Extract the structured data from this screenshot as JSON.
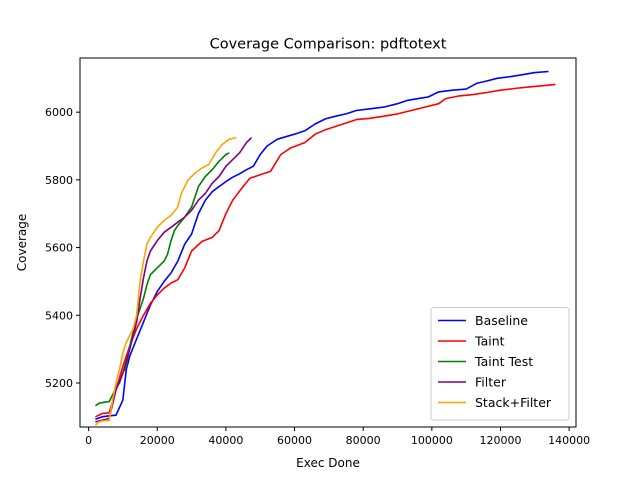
{
  "chart_data": {
    "type": "line",
    "title": "Coverage Comparison: pdftotext",
    "xlabel": "Exec Done",
    "ylabel": "Coverage",
    "xlim": [
      -2500,
      142000
    ],
    "ylim": [
      5070,
      6160
    ],
    "xticks": [
      0,
      20000,
      40000,
      60000,
      80000,
      100000,
      120000,
      140000
    ],
    "xtick_labels": [
      "0",
      "20000",
      "40000",
      "60000",
      "80000",
      "100000",
      "120000",
      "140000"
    ],
    "yticks": [
      5200,
      5400,
      5600,
      5800,
      6000
    ],
    "ytick_labels": [
      "5200",
      "5400",
      "5600",
      "5800",
      "6000"
    ],
    "grid": false,
    "legend_position": "lower-right",
    "series": [
      {
        "name": "Baseline",
        "color": "#0000ff",
        "points": [
          [
            2000,
            5093
          ],
          [
            4000,
            5100
          ],
          [
            6000,
            5103
          ],
          [
            8000,
            5105
          ],
          [
            10000,
            5150
          ],
          [
            11000,
            5240
          ],
          [
            12000,
            5280
          ],
          [
            14000,
            5330
          ],
          [
            16000,
            5380
          ],
          [
            18000,
            5430
          ],
          [
            20000,
            5470
          ],
          [
            22000,
            5500
          ],
          [
            24000,
            5525
          ],
          [
            26000,
            5560
          ],
          [
            28000,
            5610
          ],
          [
            30000,
            5640
          ],
          [
            32000,
            5700
          ],
          [
            34000,
            5740
          ],
          [
            36000,
            5765
          ],
          [
            38000,
            5780
          ],
          [
            40000,
            5795
          ],
          [
            42000,
            5808
          ],
          [
            44000,
            5818
          ],
          [
            46000,
            5830
          ],
          [
            48000,
            5840
          ],
          [
            50000,
            5875
          ],
          [
            52000,
            5900
          ],
          [
            55000,
            5920
          ],
          [
            60000,
            5935
          ],
          [
            63000,
            5945
          ],
          [
            66000,
            5965
          ],
          [
            69000,
            5980
          ],
          [
            72000,
            5988
          ],
          [
            75000,
            5995
          ],
          [
            78000,
            6005
          ],
          [
            82000,
            6010
          ],
          [
            86000,
            6015
          ],
          [
            90000,
            6025
          ],
          [
            93000,
            6035
          ],
          [
            96000,
            6040
          ],
          [
            99000,
            6045
          ],
          [
            102000,
            6060
          ],
          [
            106000,
            6065
          ],
          [
            110000,
            6068
          ],
          [
            113000,
            6085
          ],
          [
            116000,
            6092
          ],
          [
            119000,
            6100
          ],
          [
            123000,
            6105
          ],
          [
            126000,
            6110
          ],
          [
            130000,
            6117
          ],
          [
            134000,
            6120
          ]
        ]
      },
      {
        "name": "Taint",
        "color": "#ff0000",
        "points": [
          [
            2000,
            5100
          ],
          [
            4000,
            5110
          ],
          [
            6000,
            5112
          ],
          [
            8000,
            5180
          ],
          [
            10000,
            5250
          ],
          [
            12000,
            5310
          ],
          [
            14000,
            5360
          ],
          [
            16000,
            5400
          ],
          [
            18000,
            5435
          ],
          [
            20000,
            5460
          ],
          [
            22000,
            5480
          ],
          [
            24000,
            5495
          ],
          [
            26000,
            5505
          ],
          [
            28000,
            5540
          ],
          [
            30000,
            5590
          ],
          [
            33000,
            5618
          ],
          [
            36000,
            5630
          ],
          [
            38000,
            5650
          ],
          [
            40000,
            5700
          ],
          [
            42000,
            5740
          ],
          [
            45000,
            5780
          ],
          [
            47000,
            5805
          ],
          [
            50000,
            5815
          ],
          [
            53000,
            5825
          ],
          [
            56000,
            5875
          ],
          [
            59000,
            5895
          ],
          [
            63000,
            5910
          ],
          [
            66000,
            5935
          ],
          [
            69000,
            5948
          ],
          [
            72000,
            5958
          ],
          [
            75000,
            5968
          ],
          [
            78000,
            5978
          ],
          [
            82000,
            5982
          ],
          [
            86000,
            5988
          ],
          [
            90000,
            5995
          ],
          [
            94000,
            6005
          ],
          [
            98000,
            6015
          ],
          [
            102000,
            6025
          ],
          [
            104000,
            6040
          ],
          [
            108000,
            6048
          ],
          [
            112000,
            6052
          ],
          [
            116000,
            6058
          ],
          [
            120000,
            6065
          ],
          [
            124000,
            6070
          ],
          [
            128000,
            6074
          ],
          [
            132000,
            6078
          ],
          [
            136000,
            6082
          ]
        ]
      },
      {
        "name": "Taint Test",
        "color": "#008000",
        "points": [
          [
            2000,
            5133
          ],
          [
            3000,
            5140
          ],
          [
            4000,
            5142
          ],
          [
            6000,
            5145
          ],
          [
            7000,
            5165
          ],
          [
            8000,
            5185
          ],
          [
            9000,
            5200
          ],
          [
            10000,
            5230
          ],
          [
            11000,
            5250
          ],
          [
            12000,
            5310
          ],
          [
            13000,
            5350
          ],
          [
            14000,
            5390
          ],
          [
            15000,
            5420
          ],
          [
            16000,
            5450
          ],
          [
            17000,
            5490
          ],
          [
            18000,
            5520
          ],
          [
            20000,
            5540
          ],
          [
            22000,
            5560
          ],
          [
            23000,
            5580
          ],
          [
            24000,
            5620
          ],
          [
            25000,
            5650
          ],
          [
            26000,
            5665
          ],
          [
            28000,
            5690
          ],
          [
            30000,
            5720
          ],
          [
            32000,
            5780
          ],
          [
            34000,
            5810
          ],
          [
            36000,
            5830
          ],
          [
            38000,
            5855
          ],
          [
            40000,
            5875
          ],
          [
            41000,
            5880
          ]
        ]
      },
      {
        "name": "Filter",
        "color": "#800080",
        "points": [
          [
            2000,
            5085
          ],
          [
            4000,
            5090
          ],
          [
            6000,
            5095
          ],
          [
            8000,
            5180
          ],
          [
            10000,
            5230
          ],
          [
            12000,
            5300
          ],
          [
            13000,
            5340
          ],
          [
            14000,
            5380
          ],
          [
            15000,
            5450
          ],
          [
            16000,
            5510
          ],
          [
            17000,
            5560
          ],
          [
            18000,
            5590
          ],
          [
            20000,
            5620
          ],
          [
            22000,
            5645
          ],
          [
            24000,
            5660
          ],
          [
            26000,
            5675
          ],
          [
            28000,
            5690
          ],
          [
            30000,
            5710
          ],
          [
            32000,
            5740
          ],
          [
            34000,
            5760
          ],
          [
            36000,
            5790
          ],
          [
            38000,
            5810
          ],
          [
            40000,
            5840
          ],
          [
            42000,
            5860
          ],
          [
            44000,
            5880
          ],
          [
            46000,
            5910
          ],
          [
            47500,
            5925
          ]
        ]
      },
      {
        "name": "Stack+Filter",
        "color": "#ffa500",
        "points": [
          [
            2000,
            5075
          ],
          [
            3000,
            5085
          ],
          [
            4000,
            5088
          ],
          [
            6000,
            5090
          ],
          [
            7000,
            5150
          ],
          [
            8000,
            5200
          ],
          [
            9000,
            5240
          ],
          [
            10000,
            5290
          ],
          [
            11000,
            5320
          ],
          [
            12000,
            5340
          ],
          [
            13000,
            5360
          ],
          [
            14000,
            5400
          ],
          [
            15000,
            5500
          ],
          [
            16000,
            5560
          ],
          [
            17000,
            5610
          ],
          [
            18000,
            5630
          ],
          [
            20000,
            5660
          ],
          [
            22000,
            5680
          ],
          [
            24000,
            5695
          ],
          [
            26000,
            5720
          ],
          [
            27000,
            5760
          ],
          [
            29000,
            5800
          ],
          [
            31000,
            5820
          ],
          [
            33000,
            5835
          ],
          [
            35000,
            5845
          ],
          [
            37000,
            5880
          ],
          [
            39000,
            5905
          ],
          [
            41000,
            5920
          ],
          [
            43000,
            5925
          ]
        ]
      }
    ]
  }
}
